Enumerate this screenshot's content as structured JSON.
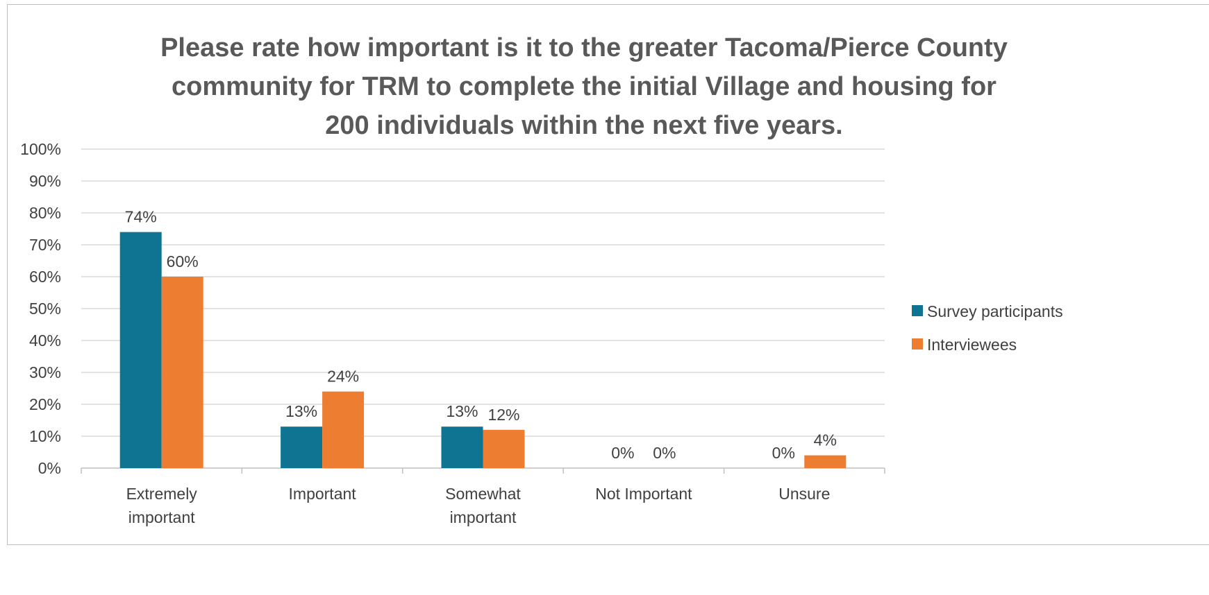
{
  "chart_data": {
    "type": "bar",
    "title": "Please rate how important is it to the greater Tacoma/Pierce County\ncommunity for TRM to complete the initial Village and housing for\n200 individuals within the next five years.",
    "categories": [
      [
        "Extremely",
        "important"
      ],
      [
        "Important"
      ],
      [
        "Somewhat",
        "important"
      ],
      [
        "Not Important"
      ],
      [
        "Unsure"
      ]
    ],
    "series": [
      {
        "name": "Survey participants",
        "color": "#0e7491",
        "values": [
          74,
          13,
          13,
          0,
          0
        ],
        "labels": [
          "74%",
          "13%",
          "13%",
          "0%",
          "0%"
        ]
      },
      {
        "name": "Interviewees",
        "color": "#ed7d31",
        "values": [
          60,
          24,
          12,
          0,
          4
        ],
        "labels": [
          "60%",
          "24%",
          "12%",
          "0%",
          "4%"
        ]
      }
    ],
    "ylim": [
      0,
      100
    ],
    "yticks": [
      "0%",
      "10%",
      "20%",
      "30%",
      "40%",
      "50%",
      "60%",
      "70%",
      "80%",
      "90%",
      "100%"
    ],
    "grid": true,
    "legend_position": "right"
  }
}
